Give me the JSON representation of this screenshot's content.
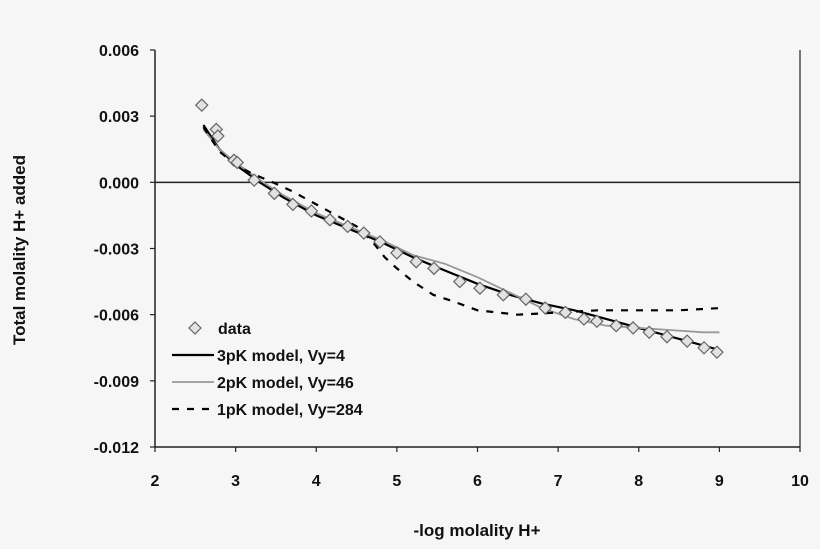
{
  "chart_data": {
    "type": "scatter",
    "title": "",
    "xlabel": "-log molality H+",
    "ylabel": "Total molality H+ added",
    "xlim": [
      2,
      10
    ],
    "ylim": [
      -0.012,
      0.006
    ],
    "xticks": [
      "2",
      "3",
      "4",
      "5",
      "6",
      "7",
      "8",
      "9",
      "10"
    ],
    "yticks": [
      "0.006",
      "0.003",
      "0.000",
      "-0.003",
      "-0.006",
      "-0.009",
      "-0.012"
    ],
    "grid": false,
    "legend_position": "bottom-left",
    "series": [
      {
        "name": "data",
        "style": "diamond-markers",
        "color": "#888888",
        "x": [
          2.58,
          2.76,
          2.78,
          2.98,
          3.02,
          3.23,
          3.48,
          3.71,
          3.94,
          4.17,
          4.39,
          4.59,
          4.79,
          5.0,
          5.24,
          5.46,
          5.78,
          6.03,
          6.32,
          6.6,
          6.84,
          7.09,
          7.32,
          7.48,
          7.72,
          7.93,
          8.13,
          8.35,
          8.6,
          8.81,
          8.97
        ],
        "y": [
          0.0035,
          0.0024,
          0.0021,
          0.001,
          0.0009,
          0.0001,
          -0.0005,
          -0.001,
          -0.0013,
          -0.0017,
          -0.002,
          -0.0023,
          -0.0027,
          -0.0032,
          -0.0036,
          -0.0039,
          -0.0045,
          -0.0048,
          -0.0051,
          -0.0053,
          -0.0057,
          -0.0059,
          -0.0062,
          -0.0063,
          -0.0065,
          -0.0066,
          -0.0068,
          -0.007,
          -0.0072,
          -0.0075,
          -0.0077
        ]
      },
      {
        "name": "3pK model, Vy=4",
        "style": "solid",
        "color": "#000000",
        "x": [
          2.6,
          2.8,
          3.0,
          3.3,
          3.6,
          4.0,
          4.4,
          4.8,
          5.2,
          5.6,
          6.0,
          6.4,
          6.8,
          7.2,
          7.6,
          8.0,
          8.4,
          8.8,
          9.0
        ],
        "y": [
          0.0026,
          0.0015,
          0.0008,
          0.0,
          -0.0007,
          -0.0015,
          -0.0021,
          -0.0027,
          -0.0034,
          -0.004,
          -0.0046,
          -0.0051,
          -0.0055,
          -0.0058,
          -0.0062,
          -0.0066,
          -0.007,
          -0.0074,
          -0.0076
        ]
      },
      {
        "name": "2pK model, Vy=46",
        "style": "solid-gray",
        "color": "#999999",
        "x": [
          2.6,
          2.8,
          3.0,
          3.3,
          3.6,
          4.0,
          4.4,
          4.8,
          5.2,
          5.6,
          6.0,
          6.4,
          6.8,
          7.2,
          7.6,
          8.0,
          8.4,
          8.8,
          9.0
        ],
        "y": [
          0.0024,
          0.0015,
          0.0009,
          0.0001,
          -0.0006,
          -0.0014,
          -0.002,
          -0.0026,
          -0.0033,
          -0.0037,
          -0.0043,
          -0.005,
          -0.0057,
          -0.0062,
          -0.0065,
          -0.0066,
          -0.0067,
          -0.0068,
          -0.0068
        ]
      },
      {
        "name": "1pK model, Vy=284",
        "style": "dashed",
        "color": "#000000",
        "x": [
          2.6,
          2.8,
          3.0,
          3.2,
          3.46,
          3.7,
          4.1,
          4.5,
          4.7,
          4.85,
          5.0,
          5.2,
          5.45,
          5.7,
          6.0,
          6.5,
          7.0,
          7.5,
          8.0,
          8.5,
          9.0
        ],
        "y": [
          0.0025,
          0.0014,
          0.0008,
          0.0004,
          0.0,
          -0.0004,
          -0.0012,
          -0.002,
          -0.0027,
          -0.0034,
          -0.0039,
          -0.0045,
          -0.0051,
          -0.0054,
          -0.0058,
          -0.006,
          -0.0059,
          -0.0058,
          -0.0058,
          -0.0058,
          -0.0057
        ]
      }
    ]
  }
}
